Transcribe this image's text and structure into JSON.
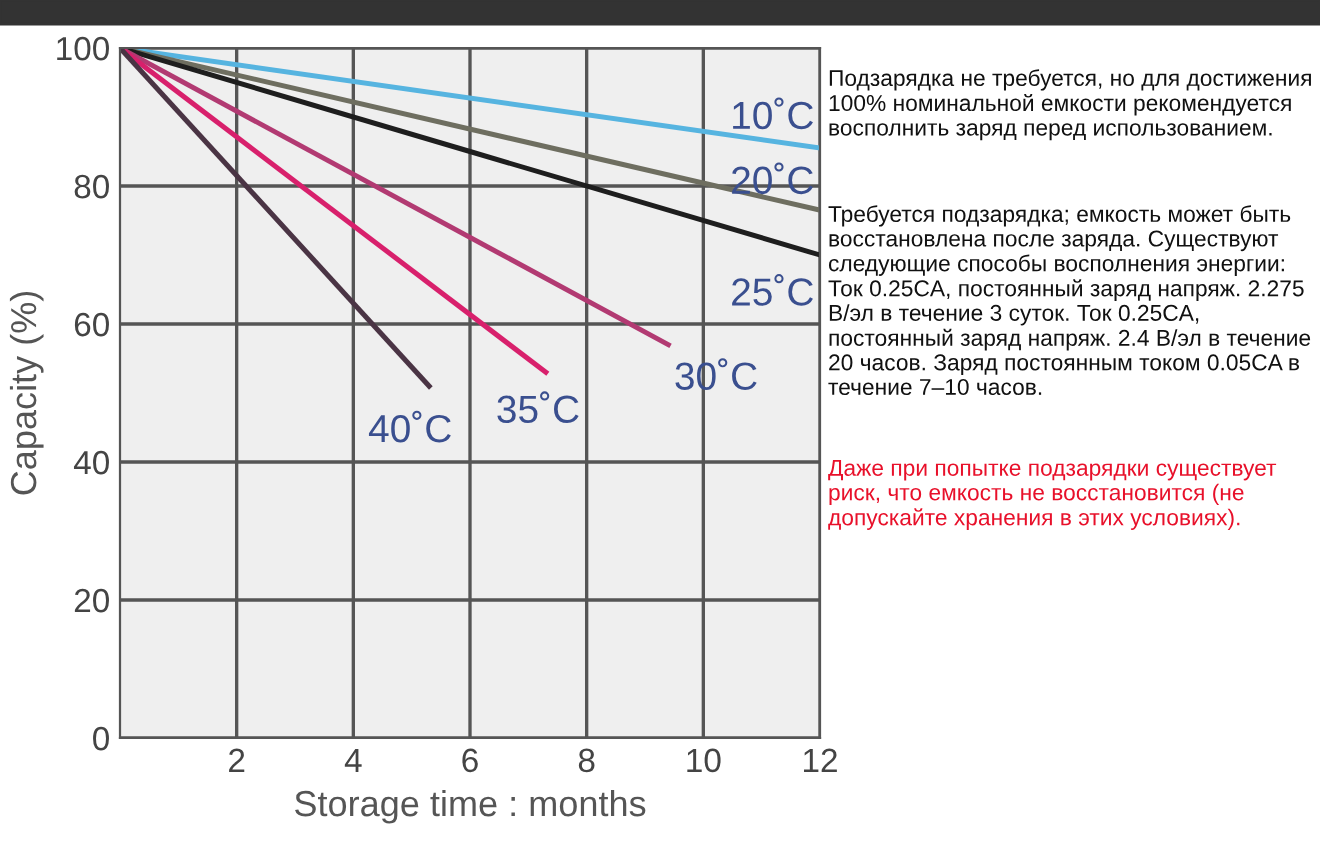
{
  "chart_data": {
    "type": "line",
    "xlabel": "Storage time : months",
    "ylabel": "Capacity (%)",
    "xlim": [
      0,
      12
    ],
    "ylim": [
      0,
      100
    ],
    "xticks": [
      2,
      4,
      6,
      8,
      10,
      12
    ],
    "yticks": [
      0,
      20,
      40,
      60,
      80,
      100
    ],
    "grid": true,
    "legend": false,
    "marker": "none",
    "line_style": "solid",
    "series": [
      {
        "name": "10˚C",
        "color": "#56b4e0",
        "x": [
          0,
          12
        ],
        "values": [
          100,
          85.5
        ]
      },
      {
        "name": "20˚C",
        "color": "#6e6e60",
        "x": [
          0,
          12
        ],
        "values": [
          100,
          76.5
        ]
      },
      {
        "name": "25˚C",
        "color": "#1e1e1e",
        "x": [
          0,
          6,
          12
        ],
        "values": [
          100,
          85,
          70
        ]
      },
      {
        "name": "30˚C",
        "color": "#b23a72",
        "x": [
          0,
          9.4
        ],
        "values": [
          100,
          57
        ]
      },
      {
        "name": "35˚C",
        "color": "#d8206c",
        "x": [
          0,
          7.3
        ],
        "values": [
          100,
          53
        ]
      },
      {
        "name": "40˚C",
        "color": "#4a3444",
        "x": [
          0,
          5.3
        ],
        "values": [
          100,
          51
        ]
      }
    ],
    "annotations": [
      {
        "text": "Подзарядка не требуется, но для достижения 100% номинальной емкости рекомендуется восполнить заряд перед использованием."
      },
      {
        "text": "Требуется подзарядка; емкость может быть восстановлена после заряда. Существуют следующие способы восполнения энергии: Ток 0.25CA, постоянный заряд напряж. 2.275 В/эл в течение 3 суток. Ток 0.25CA, постоянный заряд напряж. 2.4 В/эл в течение 20 часов. Заряд постоянным током 0.05CA в течение 7–10 часов."
      },
      {
        "text": "Даже при попытке подзарядки существует риск, что емкость не восстановится (не допускайте хранения в этих условиях)."
      }
    ]
  }
}
